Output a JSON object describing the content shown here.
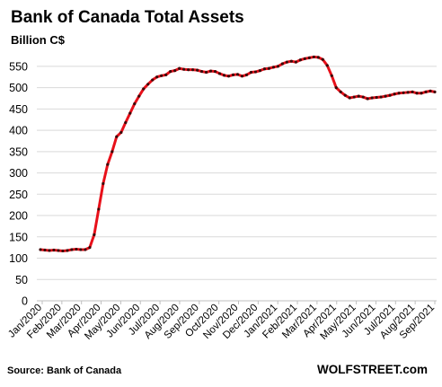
{
  "chart_data": {
    "type": "line",
    "title": "Bank of Canada Total Assets",
    "ylabel": "Billion C$",
    "xlabel": "",
    "ylim": [
      0,
      575
    ],
    "yticks": [
      0,
      50,
      100,
      150,
      200,
      250,
      300,
      350,
      400,
      450,
      500,
      550
    ],
    "x_tick_labels": [
      "Jan/2020",
      "Feb/2020",
      "Mar/2020",
      "Apr/2020",
      "May/2020",
      "Jun/2020",
      "Jul/2020",
      "Aug/2020",
      "Sep/2020",
      "Oct/2020",
      "Nov/2020",
      "Dec/2020",
      "Jan/2021",
      "Feb/2021",
      "Mar/2021",
      "Apr/2021",
      "May/2021",
      "Jun/2021",
      "Jul/2021",
      "Aug/2021",
      "Sep/2021"
    ],
    "grid": true,
    "line_color": "#e8101a",
    "marker_color": "#3a0a0a",
    "series": [
      {
        "values": [
          120,
          119,
          118,
          119,
          118,
          117,
          118,
          120,
          121,
          120,
          120,
          125,
          155,
          215,
          275,
          320,
          350,
          385,
          395,
          418,
          440,
          462,
          480,
          497,
          508,
          518,
          525,
          528,
          530,
          538,
          540,
          545,
          543,
          542,
          542,
          541,
          538,
          536,
          539,
          538,
          533,
          529,
          527,
          530,
          531,
          527,
          530,
          536,
          537,
          540,
          544,
          545,
          548,
          550,
          556,
          560,
          562,
          560,
          565,
          568,
          570,
          572,
          571,
          566,
          552,
          528,
          500,
          490,
          482,
          476,
          478,
          480,
          478,
          474,
          476,
          477,
          478,
          480,
          482,
          485,
          487,
          488,
          489,
          490,
          487,
          487,
          490,
          492,
          490
        ]
      }
    ]
  },
  "footer": {
    "source": "Source: Bank of Canada",
    "brand": "WOLFSTREET.com"
  }
}
